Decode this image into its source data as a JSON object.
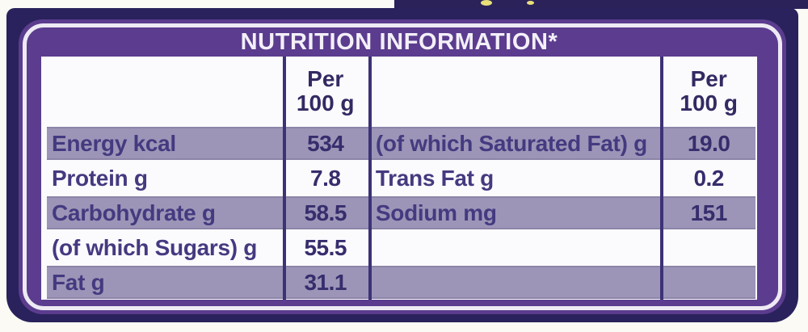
{
  "title": "NUTRITION INFORMATION*",
  "columns": {
    "per_100g": "Per\n100 g"
  },
  "rows": [
    {
      "left": {
        "label": "Energy kcal",
        "value": "534"
      },
      "right": {
        "label": "(of which Saturated Fat) g",
        "value": "19.0"
      }
    },
    {
      "left": {
        "label": "Protein g",
        "value": "7.8"
      },
      "right": {
        "label": "Trans Fat g",
        "value": "0.2"
      }
    },
    {
      "left": {
        "label": "Carbohydrate g",
        "value": "58.5"
      },
      "right": {
        "label": "Sodium mg",
        "value": "151"
      }
    },
    {
      "left": {
        "label": "(of which Sugars) g",
        "value": "55.5"
      },
      "right": {
        "label": "",
        "value": ""
      }
    },
    {
      "left": {
        "label": "Fat g",
        "value": "31.1"
      },
      "right": {
        "label": "",
        "value": ""
      }
    }
  ],
  "colors": {
    "navy_border": "#29225c",
    "purple_frame": "#5b3c8e",
    "frame_outline": "#eeeaf3",
    "shaded_row": "#9d95b7",
    "content_bg": "#fbfafd",
    "text_dark": "#362d6d",
    "speck_yellow": "#e9df79"
  }
}
